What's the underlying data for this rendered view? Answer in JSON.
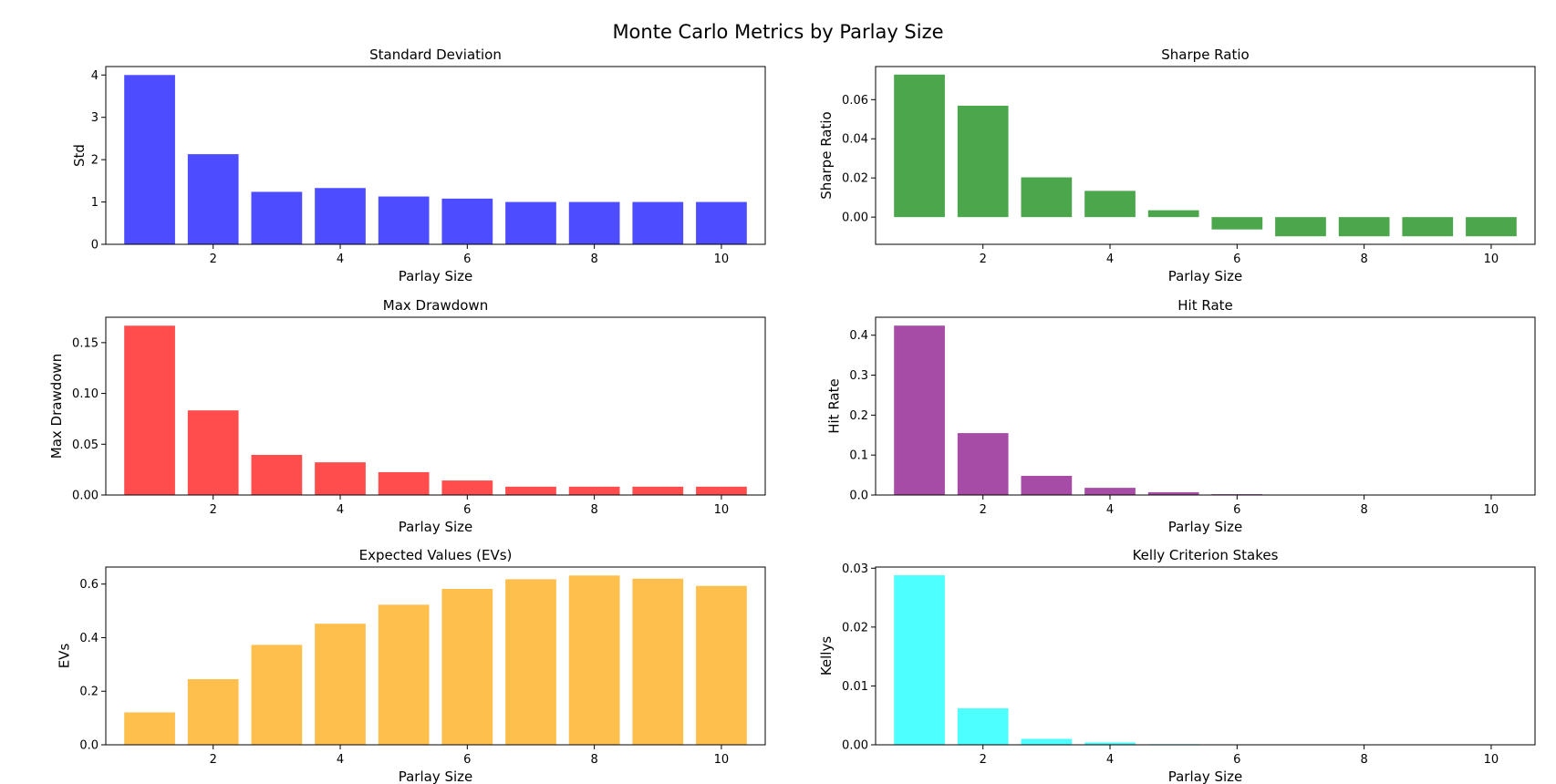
{
  "figure": {
    "title": "Monte Carlo Metrics by Parlay Size"
  },
  "chart_data": [
    {
      "type": "bar",
      "title": "Standard Deviation",
      "xlabel": "Parlay Size",
      "ylabel": "Std",
      "color": "#4d4dff",
      "x": [
        1,
        2,
        3,
        4,
        5,
        6,
        7,
        8,
        9,
        10
      ],
      "values": [
        4.0,
        2.13,
        1.24,
        1.33,
        1.13,
        1.08,
        1.0,
        1.0,
        1.0,
        1.0
      ],
      "xlim": [
        0.31,
        10.69
      ],
      "ylim": [
        0,
        4.2
      ],
      "xticks": [
        2,
        4,
        6,
        8,
        10
      ],
      "xtick_labels": [
        "2",
        "4",
        "6",
        "8",
        "10"
      ],
      "yticks": [
        0,
        1,
        2,
        3,
        4
      ],
      "ytick_labels": [
        "0",
        "1",
        "2",
        "3",
        "4"
      ],
      "grid": false
    },
    {
      "type": "bar",
      "title": "Sharpe Ratio",
      "xlabel": "Parlay Size",
      "ylabel": "Sharpe Ratio",
      "color": "#4ca64c",
      "x": [
        1,
        2,
        3,
        4,
        5,
        6,
        7,
        8,
        9,
        10
      ],
      "values": [
        0.0728,
        0.0569,
        0.0203,
        0.0134,
        0.0035,
        -0.0063,
        -0.0098,
        -0.0098,
        -0.0098,
        -0.0098
      ],
      "xlim": [
        0.31,
        10.69
      ],
      "ylim": [
        -0.0139,
        0.0769
      ],
      "xticks": [
        2,
        4,
        6,
        8,
        10
      ],
      "xtick_labels": [
        "2",
        "4",
        "6",
        "8",
        "10"
      ],
      "yticks": [
        0.0,
        0.02,
        0.04,
        0.06
      ],
      "ytick_labels": [
        "0.00",
        "0.02",
        "0.04",
        "0.06"
      ],
      "grid": false
    },
    {
      "type": "bar",
      "title": "Max Drawdown",
      "xlabel": "Parlay Size",
      "ylabel": "Max Drawdown",
      "color": "#ff4d4d",
      "x": [
        1,
        2,
        3,
        4,
        5,
        6,
        7,
        8,
        9,
        10
      ],
      "values": [
        0.1667,
        0.0833,
        0.0395,
        0.0322,
        0.0225,
        0.0143,
        0.0082,
        0.0082,
        0.0082,
        0.0082
      ],
      "xlim": [
        0.31,
        10.69
      ],
      "ylim": [
        0,
        0.175
      ],
      "xticks": [
        2,
        4,
        6,
        8,
        10
      ],
      "xtick_labels": [
        "2",
        "4",
        "6",
        "8",
        "10"
      ],
      "yticks": [
        0.0,
        0.05,
        0.1,
        0.15
      ],
      "ytick_labels": [
        "0.00",
        "0.05",
        "0.10",
        "0.15"
      ],
      "grid": false
    },
    {
      "type": "bar",
      "title": "Hit Rate",
      "xlabel": "Parlay Size",
      "ylabel": "Hit Rate",
      "color": "#a64ca6",
      "x": [
        1,
        2,
        3,
        4,
        5,
        6,
        7,
        8,
        9,
        10
      ],
      "values": [
        0.424,
        0.155,
        0.048,
        0.018,
        0.007,
        0.002,
        0.0005,
        0.0002,
        0.0001,
        0.0
      ],
      "xlim": [
        0.31,
        10.69
      ],
      "ylim": [
        0,
        0.445
      ],
      "xticks": [
        2,
        4,
        6,
        8,
        10
      ],
      "xtick_labels": [
        "2",
        "4",
        "6",
        "8",
        "10"
      ],
      "yticks": [
        0.0,
        0.1,
        0.2,
        0.3,
        0.4
      ],
      "ytick_labels": [
        "0.0",
        "0.1",
        "0.2",
        "0.3",
        "0.4"
      ],
      "grid": false
    },
    {
      "type": "bar",
      "title": "Expected Values (EVs)",
      "xlabel": "Parlay Size",
      "ylabel": "EVs",
      "color": "#ffbf4d",
      "x": [
        1,
        2,
        3,
        4,
        5,
        6,
        7,
        8,
        9,
        10
      ],
      "values": [
        0.121,
        0.245,
        0.373,
        0.452,
        0.523,
        0.582,
        0.618,
        0.632,
        0.62,
        0.593
      ],
      "xlim": [
        0.31,
        10.69
      ],
      "ylim": [
        0,
        0.6636
      ],
      "xticks": [
        2,
        4,
        6,
        8,
        10
      ],
      "xtick_labels": [
        "2",
        "4",
        "6",
        "8",
        "10"
      ],
      "yticks": [
        0.0,
        0.2,
        0.4,
        0.6
      ],
      "ytick_labels": [
        "0.0",
        "0.2",
        "0.4",
        "0.6"
      ],
      "grid": false
    },
    {
      "type": "bar",
      "title": "Kelly Criterion Stakes",
      "xlabel": "Parlay Size",
      "ylabel": "Kellys",
      "color": "#4dffff",
      "x": [
        1,
        2,
        3,
        4,
        5,
        6,
        7,
        8,
        9,
        10
      ],
      "values": [
        0.0288,
        0.0062,
        0.001,
        0.0004,
        0.0001,
        0.0,
        0.0,
        0.0,
        0.0,
        0.0
      ],
      "xlim": [
        0.31,
        10.69
      ],
      "ylim": [
        0,
        0.0302
      ],
      "xticks": [
        2,
        4,
        6,
        8,
        10
      ],
      "xtick_labels": [
        "2",
        "4",
        "6",
        "8",
        "10"
      ],
      "yticks": [
        0.0,
        0.01,
        0.02,
        0.03
      ],
      "ytick_labels": [
        "0.00",
        "0.01",
        "0.02",
        "0.03"
      ],
      "grid": false
    }
  ]
}
